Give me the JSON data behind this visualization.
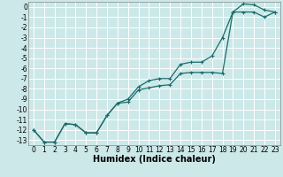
{
  "title": "",
  "xlabel": "Humidex (Indice chaleur)",
  "ylabel": "",
  "background_color": "#cce8e8",
  "grid_color": "#ffffff",
  "line_color": "#1a6b6b",
  "xlim": [
    -0.5,
    23.5
  ],
  "ylim": [
    -13.5,
    0.5
  ],
  "yticks": [
    0,
    -1,
    -2,
    -3,
    -4,
    -5,
    -6,
    -7,
    -8,
    -9,
    -10,
    -11,
    -12,
    -13
  ],
  "xticks": [
    0,
    1,
    2,
    3,
    4,
    5,
    6,
    7,
    8,
    9,
    10,
    11,
    12,
    13,
    14,
    15,
    16,
    17,
    18,
    19,
    20,
    21,
    22,
    23
  ],
  "line1_x": [
    0,
    1,
    2,
    3,
    4,
    5,
    6,
    7,
    8,
    9,
    10,
    11,
    12,
    13,
    14,
    15,
    16,
    17,
    18,
    19,
    20,
    21,
    22,
    23
  ],
  "line1_y": [
    -12.0,
    -13.2,
    -13.2,
    -11.4,
    -11.5,
    -12.3,
    -12.3,
    -10.6,
    -9.4,
    -9.3,
    -8.1,
    -7.9,
    -7.7,
    -7.6,
    -6.5,
    -6.4,
    -6.4,
    -6.4,
    -6.5,
    -0.5,
    0.3,
    0.2,
    -0.3,
    -0.5
  ],
  "line2_x": [
    0,
    1,
    2,
    3,
    4,
    5,
    6,
    7,
    8,
    9,
    10,
    11,
    12,
    13,
    14,
    15,
    16,
    17,
    18,
    19,
    20,
    21,
    22,
    23
  ],
  "line2_y": [
    -12.0,
    -13.2,
    -13.2,
    -11.4,
    -11.5,
    -12.3,
    -12.3,
    -10.6,
    -9.4,
    -9.0,
    -7.8,
    -7.2,
    -7.0,
    -7.0,
    -5.6,
    -5.4,
    -5.4,
    -4.8,
    -3.0,
    -0.5,
    -0.5,
    -0.5,
    -1.0,
    -0.5
  ],
  "figsize": [
    3.2,
    2.0
  ],
  "dpi": 100,
  "xlabel_fontsize": 7,
  "tick_fontsize": 5.5
}
